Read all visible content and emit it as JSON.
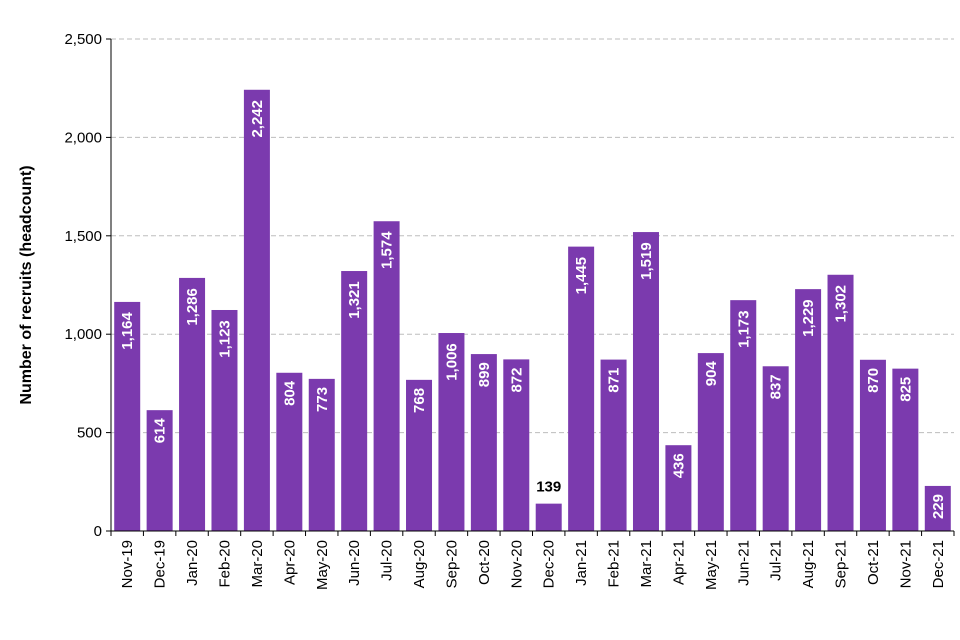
{
  "chart_data": {
    "type": "bar",
    "ylabel": "Number of recruits (headcount)",
    "xlabel": "",
    "title": "",
    "ylim": [
      0,
      2500
    ],
    "yticks": [
      0,
      500,
      1000,
      1500,
      2000,
      2500
    ],
    "ytick_labels": [
      "0",
      "500",
      "1,000",
      "1,500",
      "2,000",
      "2,500"
    ],
    "grid": true,
    "legend": "none",
    "bar_color": "#7b3aae",
    "categories": [
      "Nov-19",
      "Dec-19",
      "Jan-20",
      "Feb-20",
      "Mar-20",
      "Apr-20",
      "May-20",
      "Jun-20",
      "Jul-20",
      "Aug-20",
      "Sep-20",
      "Oct-20",
      "Nov-20",
      "Dec-20",
      "Jan-21",
      "Feb-21",
      "Mar-21",
      "Apr-21",
      "May-21",
      "Jun-21",
      "Jul-21",
      "Aug-21",
      "Sep-21",
      "Oct-21",
      "Nov-21",
      "Dec-21"
    ],
    "values": [
      1164,
      614,
      1286,
      1123,
      2242,
      804,
      773,
      1321,
      1574,
      768,
      1006,
      899,
      872,
      139,
      1445,
      871,
      1519,
      436,
      904,
      1173,
      837,
      1229,
      1302,
      870,
      825,
      229
    ],
    "value_labels": [
      "1,164",
      "614",
      "1,286",
      "1,123",
      "2,242",
      "804",
      "773",
      "1,321",
      "1,574",
      "768",
      "1,006",
      "899",
      "872",
      "139",
      "1,445",
      "871",
      "1,519",
      "436",
      "904",
      "1,173",
      "837",
      "1,229",
      "1,302",
      "870",
      "825",
      "229"
    ]
  }
}
